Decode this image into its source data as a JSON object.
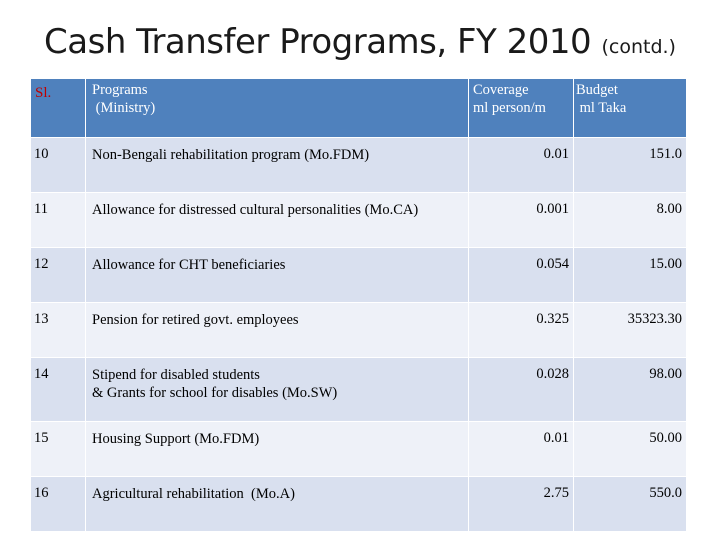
{
  "title": {
    "main": "Cash Transfer Programs, FY 2010",
    "suffix": "(contd.)"
  },
  "table": {
    "headers": {
      "sl": "Sl.",
      "programs_line1": "Programs",
      "programs_line2": " (Ministry)",
      "coverage_line1": "Coverage",
      "coverage_line2": "ml person/m",
      "budget_line1": "Budget",
      "budget_line2": " ml Taka"
    },
    "rows": [
      {
        "sl": "10",
        "program": "Non-Bengali rehabilitation program (Mo.FDM)",
        "program_line2": "",
        "coverage": "0.01",
        "budget": "151.0"
      },
      {
        "sl": "11",
        "program": "Allowance for distressed cultural personalities (Mo.CA)",
        "program_line2": "",
        "coverage": "0.001",
        "budget": "8.00"
      },
      {
        "sl": "12",
        "program": "Allowance for CHT beneficiaries",
        "program_line2": "",
        "coverage": "0.054",
        "budget": "15.00"
      },
      {
        "sl": "13",
        "program": "Pension for retired govt. employees",
        "program_line2": "",
        "coverage": "0.325",
        "budget": "35323.30"
      },
      {
        "sl": "14",
        "program": "Stipend for disabled students",
        "program_line2": "& Grants for school for disables (Mo.SW)",
        "coverage": "0.028",
        "budget": "98.00"
      },
      {
        "sl": "15",
        "program": "Housing Support (Mo.FDM)",
        "program_line2": "",
        "coverage": "0.01",
        "budget": "50.00"
      },
      {
        "sl": "16",
        "program": "Agricultural rehabilitation  (Mo.A)",
        "program_line2": "",
        "coverage": "2.75",
        "budget": "550.0"
      }
    ]
  }
}
